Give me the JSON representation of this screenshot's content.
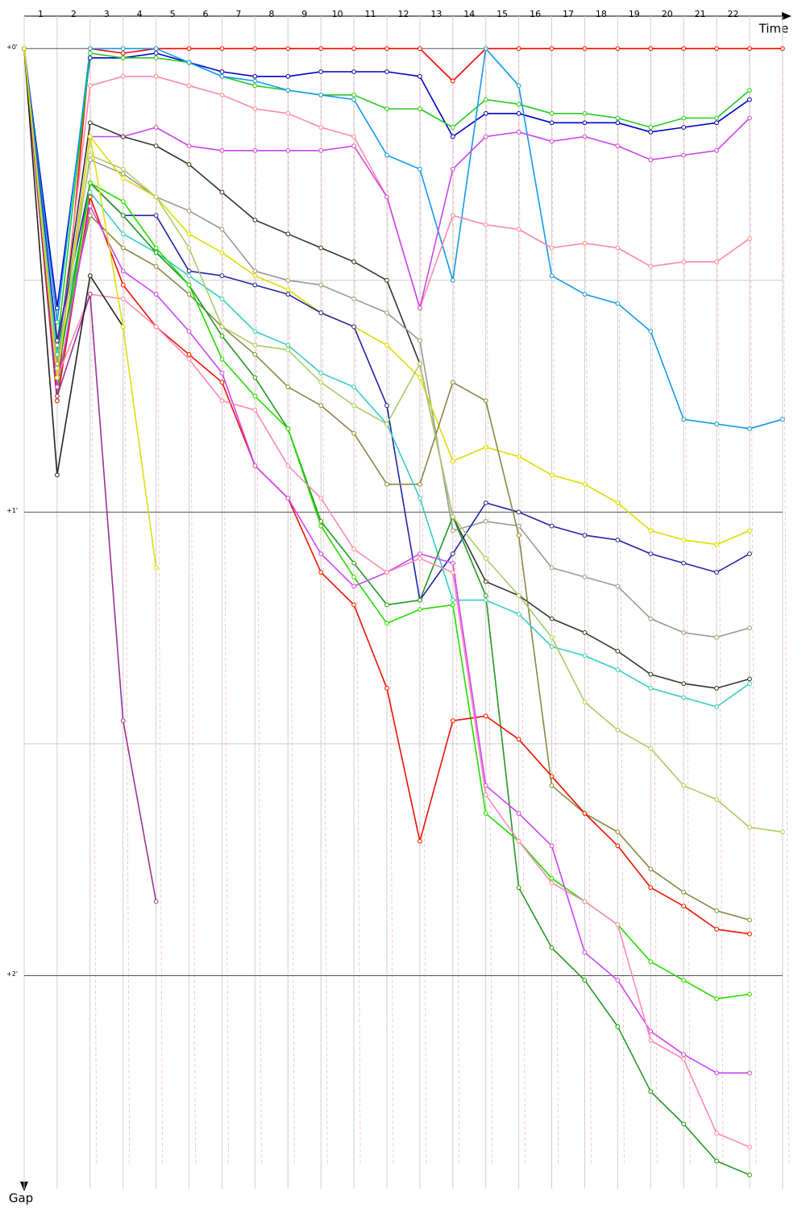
{
  "chart_data": {
    "type": "line",
    "x_label": "Time",
    "y_label": "Gap",
    "x": [
      0,
      1,
      2,
      3,
      4,
      5,
      6,
      7,
      8,
      9,
      10,
      11,
      12,
      13,
      14,
      15,
      16,
      17,
      18,
      19,
      20,
      21,
      22,
      23
    ],
    "xlim": [
      0,
      23.1
    ],
    "xticks": [
      {
        "value": 0.5,
        "label": "1"
      },
      {
        "value": 1.5,
        "label": "2"
      },
      {
        "value": 2.5,
        "label": "3"
      },
      {
        "value": 3.5,
        "label": "4"
      },
      {
        "value": 4.5,
        "label": "5"
      },
      {
        "value": 5.5,
        "label": "6"
      },
      {
        "value": 6.5,
        "label": "7"
      },
      {
        "value": 7.5,
        "label": "8"
      },
      {
        "value": 8.5,
        "label": "9"
      },
      {
        "value": 9.5,
        "label": "10"
      },
      {
        "value": 10.5,
        "label": "11"
      },
      {
        "value": 11.5,
        "label": "12"
      },
      {
        "value": 12.5,
        "label": "13"
      },
      {
        "value": 13.5,
        "label": "14"
      },
      {
        "value": 14.5,
        "label": "15"
      },
      {
        "value": 15.5,
        "label": "16"
      },
      {
        "value": 16.5,
        "label": "17"
      },
      {
        "value": 17.5,
        "label": "18"
      },
      {
        "value": 18.5,
        "label": "19"
      },
      {
        "value": 19.5,
        "label": "20"
      },
      {
        "value": 20.5,
        "label": "21"
      },
      {
        "value": 21.5,
        "label": "22"
      }
    ],
    "ylim": [
      -0.07,
      2.46
    ],
    "inverted_y": true,
    "yticks": [
      {
        "value": 0,
        "label": "+0'"
      },
      {
        "value": 1,
        "label": "+1'"
      },
      {
        "value": 2,
        "label": "+2'"
      }
    ],
    "minor_grid_y": [
      0.5,
      1.5
    ],
    "grid": true,
    "series": [
      {
        "color": "#ff0000",
        "values": [
          0,
          0.76,
          0,
          0.01,
          0,
          0,
          0,
          0,
          0,
          0,
          0,
          0,
          0,
          0.07,
          0,
          0,
          0,
          0,
          0,
          0,
          0,
          0,
          0,
          0
        ]
      },
      {
        "color": "#0000cc",
        "values": [
          0,
          0.56,
          0.02,
          0.02,
          0.01,
          0.03,
          0.05,
          0.06,
          0.06,
          0.05,
          0.05,
          0.05,
          0.06,
          0.19,
          0.14,
          0.14,
          0.16,
          0.16,
          0.16,
          0.18,
          0.17,
          0.16,
          0.11,
          null
        ]
      },
      {
        "color": "#22cc22",
        "values": [
          0,
          0.64,
          0.01,
          0.02,
          0.02,
          0.03,
          0.06,
          0.08,
          0.09,
          0.1,
          0.1,
          0.13,
          0.13,
          0.17,
          0.11,
          0.12,
          0.14,
          0.14,
          0.15,
          0.17,
          0.15,
          0.15,
          0.09,
          null
        ]
      },
      {
        "color": "#1199ee",
        "values": [
          0,
          0.59,
          0,
          0,
          0,
          0.03,
          0.06,
          0.07,
          0.09,
          0.1,
          0.11,
          0.23,
          0.26,
          0.5,
          0,
          0.08,
          0.49,
          0.53,
          0.55,
          0.61,
          0.8,
          0.81,
          0.82,
          0.8
        ]
      },
      {
        "color": "#ff88aa",
        "values": [
          0,
          0.68,
          0.08,
          0.06,
          0.06,
          0.08,
          0.1,
          0.13,
          0.14,
          0.17,
          0.19,
          0.32,
          0.56,
          0.36,
          0.38,
          0.39,
          0.43,
          0.42,
          0.43,
          0.47,
          0.46,
          0.46,
          0.41,
          null
        ]
      },
      {
        "color": "#cc44ee",
        "values": [
          0,
          0.69,
          0.19,
          0.19,
          0.17,
          0.21,
          0.22,
          0.22,
          0.22,
          0.22,
          0.21,
          0.32,
          0.56,
          0.26,
          0.19,
          0.18,
          0.2,
          0.19,
          0.21,
          0.24,
          0.23,
          0.22,
          0.15,
          null
        ]
      },
      {
        "color": "#333333",
        "values": [
          0,
          0.66,
          0.16,
          0.19,
          0.21,
          0.25,
          0.31,
          0.37,
          0.4,
          0.43,
          0.46,
          0.5,
          0.68,
          1.01,
          1.15,
          1.18,
          1.23,
          1.26,
          1.3,
          1.35,
          1.37,
          1.38,
          1.36,
          null
        ]
      },
      {
        "color": "#999999",
        "values": [
          0,
          0.64,
          0.24,
          0.27,
          0.32,
          0.35,
          0.39,
          0.48,
          0.5,
          0.51,
          0.54,
          0.57,
          0.63,
          1.04,
          1.02,
          1.03,
          1.12,
          1.14,
          1.16,
          1.23,
          1.26,
          1.27,
          1.25,
          null
        ]
      },
      {
        "color": "#dddd00",
        "values": [
          0,
          0.71,
          0.19,
          0.28,
          0.32,
          0.4,
          0.44,
          0.49,
          0.52,
          0.57,
          0.6,
          0.64,
          0.71,
          0.89,
          0.86,
          0.88,
          0.92,
          0.94,
          0.98,
          1.04,
          1.06,
          1.07,
          1.04,
          null
        ]
      },
      {
        "color": "#2222aa",
        "values": [
          0,
          0.63,
          0.29,
          0.36,
          0.36,
          0.48,
          0.49,
          0.51,
          0.53,
          0.57,
          0.6,
          0.77,
          1.19,
          1.09,
          0.98,
          1,
          1.03,
          1.05,
          1.06,
          1.09,
          1.11,
          1.13,
          1.09,
          null
        ]
      },
      {
        "color": "#888844",
        "values": [
          0,
          0.68,
          0.36,
          0.43,
          0.47,
          0.53,
          0.6,
          0.66,
          0.73,
          0.77,
          0.83,
          0.94,
          0.94,
          0.72,
          0.76,
          1.05,
          1.59,
          1.65,
          1.69,
          1.77,
          1.82,
          1.86,
          1.88,
          null
        ]
      },
      {
        "color": "#33cccc",
        "values": [
          0,
          0.66,
          0.31,
          0.4,
          0.44,
          0.49,
          0.54,
          0.61,
          0.64,
          0.7,
          0.73,
          0.81,
          0.97,
          1.19,
          1.19,
          1.22,
          1.29,
          1.31,
          1.34,
          1.38,
          1.4,
          1.42,
          1.37,
          null
        ]
      },
      {
        "color": "#229922",
        "values": [
          0,
          0.71,
          0.29,
          0.36,
          0.44,
          0.51,
          0.62,
          0.71,
          0.82,
          1.02,
          1.11,
          1.2,
          1.19,
          1.01,
          1.18,
          1.81,
          1.94,
          2.01,
          2.11,
          2.25,
          2.32,
          2.4,
          2.43,
          null
        ]
      },
      {
        "color": "#22dd00",
        "values": [
          0,
          0.75,
          0.29,
          0.33,
          0.43,
          0.51,
          0.67,
          0.75,
          0.82,
          1.03,
          1.14,
          1.24,
          1.21,
          1.2,
          1.65,
          1.71,
          1.79,
          1.84,
          1.89,
          1.97,
          2.01,
          2.05,
          2.04,
          null
        ]
      },
      {
        "color": "#ee1100",
        "values": [
          0,
          0.76,
          0.32,
          0.51,
          0.6,
          0.66,
          0.72,
          0.9,
          0.97,
          1.13,
          1.2,
          1.38,
          1.71,
          1.45,
          1.44,
          1.49,
          1.57,
          1.65,
          1.72,
          1.81,
          1.85,
          1.9,
          1.91,
          null
        ]
      },
      {
        "color": "#cc44ff",
        "values": [
          0,
          0.73,
          0.34,
          0.48,
          0.53,
          0.61,
          0.7,
          0.9,
          0.97,
          1.09,
          1.16,
          1.13,
          1.09,
          1.11,
          1.59,
          1.65,
          1.72,
          1.95,
          2.01,
          2.12,
          2.17,
          2.21,
          2.21,
          null
        ]
      },
      {
        "color": "#ff88bb",
        "values": [
          0,
          0.71,
          0.53,
          0.54,
          0.6,
          0.67,
          0.76,
          0.78,
          0.9,
          0.97,
          1.08,
          1.13,
          1.1,
          1.13,
          1.61,
          1.71,
          1.8,
          1.84,
          1.89,
          2.14,
          2.18,
          2.34,
          2.37,
          null
        ]
      },
      {
        "color": "#aacc66",
        "values": [
          0,
          0.69,
          0.23,
          0.26,
          0.32,
          0.43,
          0.6,
          0.64,
          0.65,
          0.72,
          0.77,
          0.81,
          0.68,
          1.01,
          1.1,
          1.18,
          1.27,
          1.41,
          1.47,
          1.51,
          1.59,
          1.62,
          1.68,
          1.69
        ]
      },
      {
        "color": "#993399",
        "values": [
          0,
          0.75,
          0.53,
          1.45,
          1.84,
          null,
          null,
          null,
          null,
          null,
          null,
          null,
          null,
          null,
          null,
          null,
          null,
          null,
          null,
          null,
          null,
          null,
          null,
          null
        ]
      },
      {
        "color": "#222222",
        "values": [
          0,
          0.92,
          0.49,
          0.6,
          null,
          null,
          null,
          null,
          null,
          null,
          null,
          null,
          null,
          null,
          null,
          null,
          null,
          null,
          null,
          null,
          null,
          null,
          null,
          null
        ]
      },
      {
        "color": "#dddd11",
        "values": [
          0,
          0.71,
          0.19,
          0.6,
          1.12,
          null,
          null,
          null,
          null,
          null,
          null,
          null,
          null,
          null,
          null,
          null,
          null,
          null,
          null,
          null,
          null,
          null,
          null,
          null
        ]
      }
    ]
  }
}
